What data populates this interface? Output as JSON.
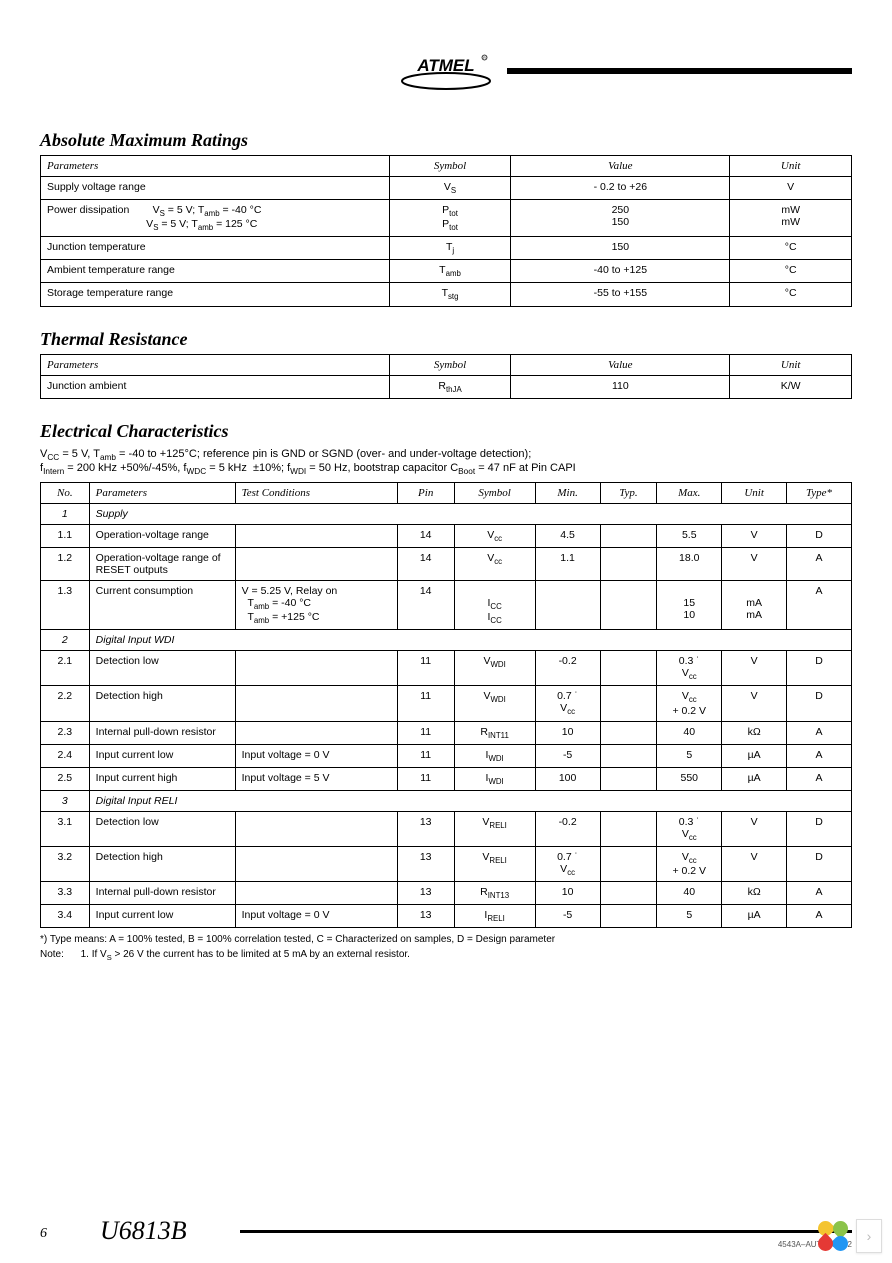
{
  "logo_text": "ATMEL",
  "sections": {
    "abs_max": {
      "title": "Absolute Maximum Ratings",
      "headers": [
        "Parameters",
        "Symbol",
        "Value",
        "Unit"
      ],
      "rows": [
        {
          "param": "Supply voltage range",
          "symbol": "V<sub>S</sub>",
          "value": "- 0.2 to +26",
          "unit": "V"
        },
        {
          "param": "Power dissipation&nbsp;&nbsp;&nbsp;&nbsp;&nbsp;&nbsp;&nbsp;&nbsp;V<sub>S</sub> = 5 V; T<sub>amb</sub> = -40 °C<br>&nbsp;&nbsp;&nbsp;&nbsp;&nbsp;&nbsp;&nbsp;&nbsp;&nbsp;&nbsp;&nbsp;&nbsp;&nbsp;&nbsp;&nbsp;&nbsp;&nbsp;&nbsp;&nbsp;&nbsp;&nbsp;&nbsp;&nbsp;&nbsp;&nbsp;&nbsp;&nbsp;&nbsp;&nbsp;&nbsp;&nbsp;&nbsp;&nbsp;&nbsp;V<sub>S</sub> = 5 V; T<sub>amb</sub> = 125 °C",
          "symbol": "P<sub>tot</sub><br>P<sub>tot</sub>",
          "value": "250<br>150",
          "unit": "mW<br>mW"
        },
        {
          "param": "Junction temperature",
          "symbol": "T<sub>j</sub>",
          "value": "150",
          "unit": "°C"
        },
        {
          "param": "Ambient temperature range",
          "symbol": "T<sub>amb</sub>",
          "value": "-40 to +125",
          "unit": "°C"
        },
        {
          "param": "Storage temperature range",
          "symbol": "T<sub>stg</sub>",
          "value": "-55 to +155",
          "unit": "°C"
        }
      ]
    },
    "thermal": {
      "title": "Thermal Resistance",
      "headers": [
        "Parameters",
        "Symbol",
        "Value",
        "Unit"
      ],
      "rows": [
        {
          "param": "Junction ambient",
          "symbol": "R<sub>thJA</sub>",
          "value": "110",
          "unit": "K/W"
        }
      ]
    },
    "elec": {
      "title": "Electrical Characteristics",
      "cond1": "V<sub>CC</sub> = 5 V, T<sub>amb</sub> = -40 to +125°C; reference pin is GND or SGND (over- and under-voltage detection);",
      "cond2": "f<sub>Intern</sub> = 200 kHz +50%/-45%, f<sub>WDC</sub> = 5 kHz &nbsp;±10%; f<sub>WDI</sub> = 50 Hz, bootstrap capacitor C<sub>Boot</sub> = 47 nF at Pin CAPI",
      "headers": [
        "No.",
        "Parameters",
        "Test Conditions",
        "Pin",
        "Symbol",
        "Min.",
        "Typ.",
        "Max.",
        "Unit",
        "Type*"
      ],
      "rows": [
        {
          "no": "1",
          "param": "Supply",
          "section": true
        },
        {
          "no": "1.1",
          "param": "Operation-voltage range",
          "tc": "",
          "pin": "14",
          "sym": "V<sub>cc</sub>",
          "min": "4.5",
          "typ": "",
          "max": "5.5",
          "unit": "V",
          "type": "D"
        },
        {
          "no": "1.2",
          "param": "Operation-voltage range of<br>RESET outputs",
          "tc": "",
          "pin": "14",
          "sym": "V<sub>cc</sub>",
          "min": "1.1",
          "typ": "",
          "max": "18.0",
          "unit": "V",
          "type": "A"
        },
        {
          "no": "1.3",
          "param": "Current consumption",
          "tc": "V = 5.25 V, Relay on<br>&nbsp;&nbsp;T<sub>amb</sub> = -40 °C<br>&nbsp;&nbsp;T<sub>amb</sub> = +125 °C",
          "pin": "14",
          "sym": "<br>I<sub>CC</sub><br>I<sub>CC</sub>",
          "min": "",
          "typ": "",
          "max": "<br>15<br>10",
          "unit": "<br>mA<br>mA",
          "type": "A"
        },
        {
          "no": "2",
          "param": "Digital Input WDI",
          "section": true
        },
        {
          "no": "2.1",
          "param": "Detection low",
          "tc": "",
          "pin": "11",
          "sym": "V<sub>WDI</sub>",
          "min": "-0.2",
          "typ": "",
          "max": "0.3 ˙<br>V<sub>cc</sub>",
          "unit": "V",
          "type": "D"
        },
        {
          "no": "2.2",
          "param": "Detection high",
          "tc": "",
          "pin": "11",
          "sym": "V<sub>WDI</sub>",
          "min": "0.7 ˙<br>V<sub>cc</sub>",
          "typ": "",
          "max": "V<sub>cc</sub><br>+ 0.2 V",
          "unit": "V",
          "type": "D"
        },
        {
          "no": "2.3",
          "param": "Internal pull-down resistor",
          "tc": "",
          "pin": "11",
          "sym": "R<sub>INT11</sub>",
          "min": "10",
          "typ": "",
          "max": "40",
          "unit": "kΩ",
          "type": "A"
        },
        {
          "no": "2.4",
          "param": "Input current low",
          "tc": "Input voltage = 0 V",
          "pin": "11",
          "sym": "I<sub>WDI</sub>",
          "min": "-5",
          "typ": "",
          "max": "5",
          "unit": "µA",
          "type": "A"
        },
        {
          "no": "2.5",
          "param": "Input current high",
          "tc": "Input voltage = 5 V",
          "pin": "11",
          "sym": "I<sub>WDI</sub>",
          "min": "100",
          "typ": "",
          "max": "550",
          "unit": "µA",
          "type": "A"
        },
        {
          "no": "3",
          "param": "Digital Input RELI",
          "section": true
        },
        {
          "no": "3.1",
          "param": "Detection low",
          "tc": "",
          "pin": "13",
          "sym": "V<sub>RELI</sub>",
          "min": "-0.2",
          "typ": "",
          "max": "0.3 ˙<br>V<sub>cc</sub>",
          "unit": "V",
          "type": "D"
        },
        {
          "no": "3.2",
          "param": "Detection high",
          "tc": "",
          "pin": "13",
          "sym": "V<sub>RELI</sub>",
          "min": "0.7 ˙<br>V<sub>cc</sub>",
          "typ": "",
          "max": "V<sub>cc</sub><br>+ 0.2 V",
          "unit": "V",
          "type": "D"
        },
        {
          "no": "3.3",
          "param": "Internal pull-down resistor",
          "tc": "",
          "pin": "13",
          "sym": "R<sub>INT13</sub>",
          "min": "10",
          "typ": "",
          "max": "40",
          "unit": "kΩ",
          "type": "A"
        },
        {
          "no": "3.4",
          "param": "Input current low",
          "tc": "Input voltage = 0 V",
          "pin": "13",
          "sym": "I<sub>RELI</sub>",
          "min": "-5",
          "typ": "",
          "max": "5",
          "unit": "µA",
          "type": "A"
        }
      ],
      "footnote": "*) Type means: A = 100% tested, B = 100% correlation tested, C = Characterized on samples, D = Design parameter",
      "note": "Note:&nbsp;&nbsp;&nbsp;&nbsp;&nbsp;&nbsp;1. If V<sub>S</sub> > 26 V the current has to be limited at 5 mA by an external resistor."
    }
  },
  "footer": {
    "page": "6",
    "part": "U6813B",
    "rev": "4543A–AUTO–05/02"
  },
  "widget": {
    "petal_colors": [
      "#f4c430",
      "#8bc34a",
      "#2196f3",
      "#e53935"
    ]
  },
  "col_widths": {
    "abs_max": [
      "43%",
      "15%",
      "27%",
      "15%"
    ],
    "thermal": [
      "43%",
      "15%",
      "27%",
      "15%"
    ],
    "elec": [
      "6%",
      "18%",
      "20%",
      "7%",
      "10%",
      "8%",
      "7%",
      "8%",
      "8%",
      "8%"
    ]
  }
}
